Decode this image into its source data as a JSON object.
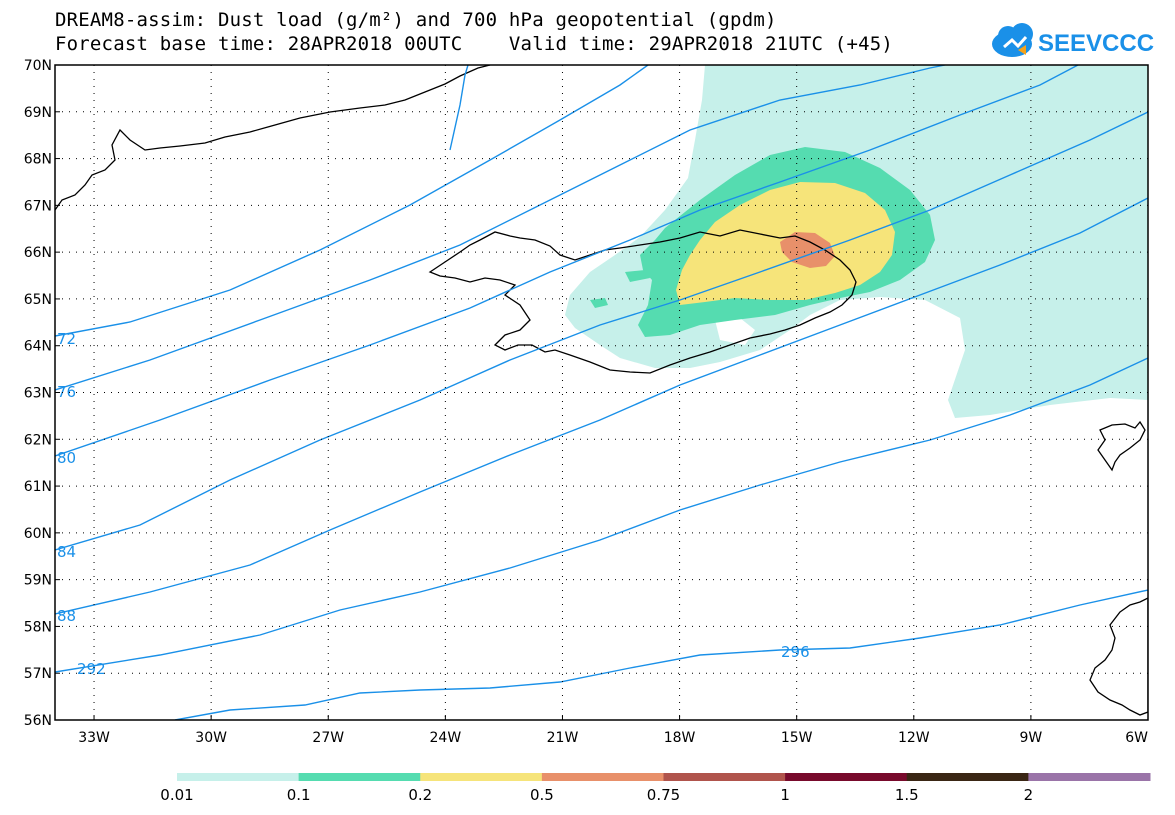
{
  "title": {
    "line1": "DREAM8-assim: Dust load (g/m²) and 700 hPa geopotential (gpdm)",
    "line2": "Forecast base time: 28APR2018 00UTC    Valid time: 29APR2018 21UTC (+45)"
  },
  "logo": {
    "text": "SEEVCCC",
    "icon": "cloud-logo-icon",
    "color": "#1a90e8"
  },
  "map": {
    "lat_range": [
      56,
      70
    ],
    "lon_range": [
      -34,
      -6
    ],
    "lat_ticks": [
      "56N",
      "57N",
      "58N",
      "59N",
      "60N",
      "61N",
      "62N",
      "63N",
      "64N",
      "65N",
      "66N",
      "67N",
      "68N",
      "69N",
      "70N"
    ],
    "lon_ticks": [
      "33W",
      "30W",
      "27W",
      "24W",
      "21W",
      "18W",
      "15W",
      "12W",
      "9W",
      "6W"
    ],
    "contour_color": "#1a90e8",
    "contour_labels": [
      "72",
      "76",
      "80",
      "84",
      "88",
      "292",
      "296"
    ]
  },
  "colorbar": {
    "colors": [
      "#c6f0ea",
      "#55dcb0",
      "#f6e47a",
      "#e8906a",
      "#b0544c",
      "#780a2c",
      "#3a2614",
      "#9a74a8"
    ],
    "labels": [
      "0.01",
      "0.1",
      "0.2",
      "0.5",
      "0.75",
      "1",
      "1.5",
      "2"
    ]
  }
}
